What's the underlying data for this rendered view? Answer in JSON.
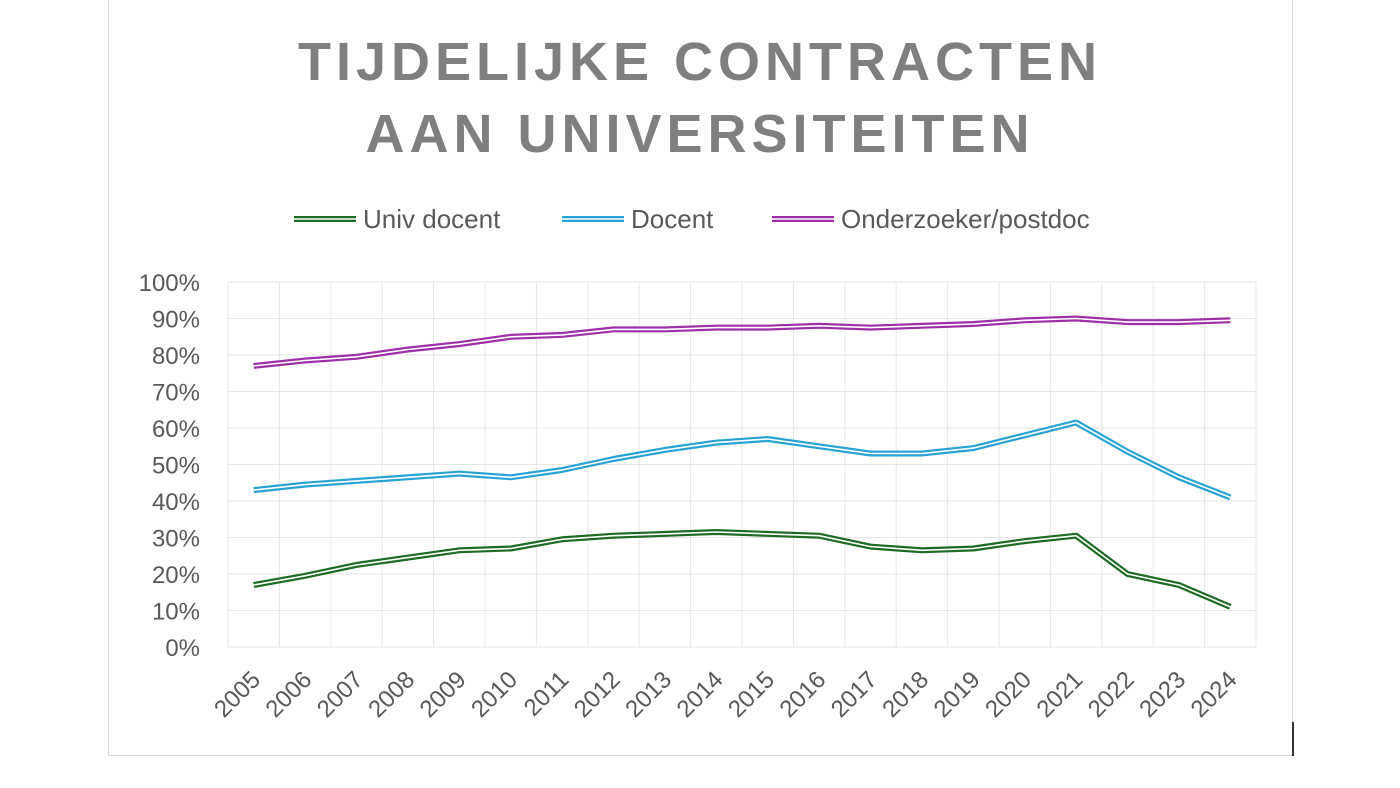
{
  "chart_data": {
    "type": "line",
    "title_lines": [
      "TIJDELIJKE CONTRACTEN",
      "AAN UNIVERSITEITEN"
    ],
    "x": [
      "2005",
      "2006",
      "2007",
      "2008",
      "2009",
      "2010",
      "2011",
      "2012",
      "2013",
      "2014",
      "2015",
      "2016",
      "2017",
      "2018",
      "2019",
      "2020",
      "2021",
      "2022",
      "2023",
      "2024"
    ],
    "y_ticks": [
      "0%",
      "10%",
      "20%",
      "30%",
      "40%",
      "50%",
      "60%",
      "70%",
      "80%",
      "90%",
      "100%"
    ],
    "ylim": [
      0,
      100
    ],
    "grid": true,
    "legend_position": "top",
    "series": [
      {
        "name": "Univ docent",
        "color": "#1e6b24",
        "values": [
          17,
          19.5,
          22.5,
          24.5,
          26.5,
          27,
          29.5,
          30.5,
          31,
          31.5,
          31,
          30.5,
          27.5,
          26.5,
          27,
          29,
          30.5,
          20,
          17,
          11
        ]
      },
      {
        "name": "Docent",
        "color": "#29a3d6",
        "values": [
          43,
          44.5,
          45.5,
          46.5,
          47.5,
          46.5,
          48.5,
          51.5,
          54,
          56,
          57,
          55,
          53,
          53,
          54.5,
          58,
          61.5,
          53.5,
          46.5,
          41
        ]
      },
      {
        "name": "Onderzoeker/postdoc",
        "color": "#9e2fa8",
        "values": [
          77,
          78.5,
          79.5,
          81.5,
          83,
          85,
          85.5,
          87,
          87,
          87.5,
          87.5,
          88,
          87.5,
          88,
          88.5,
          89.5,
          90,
          89,
          89,
          89.5
        ]
      }
    ]
  }
}
